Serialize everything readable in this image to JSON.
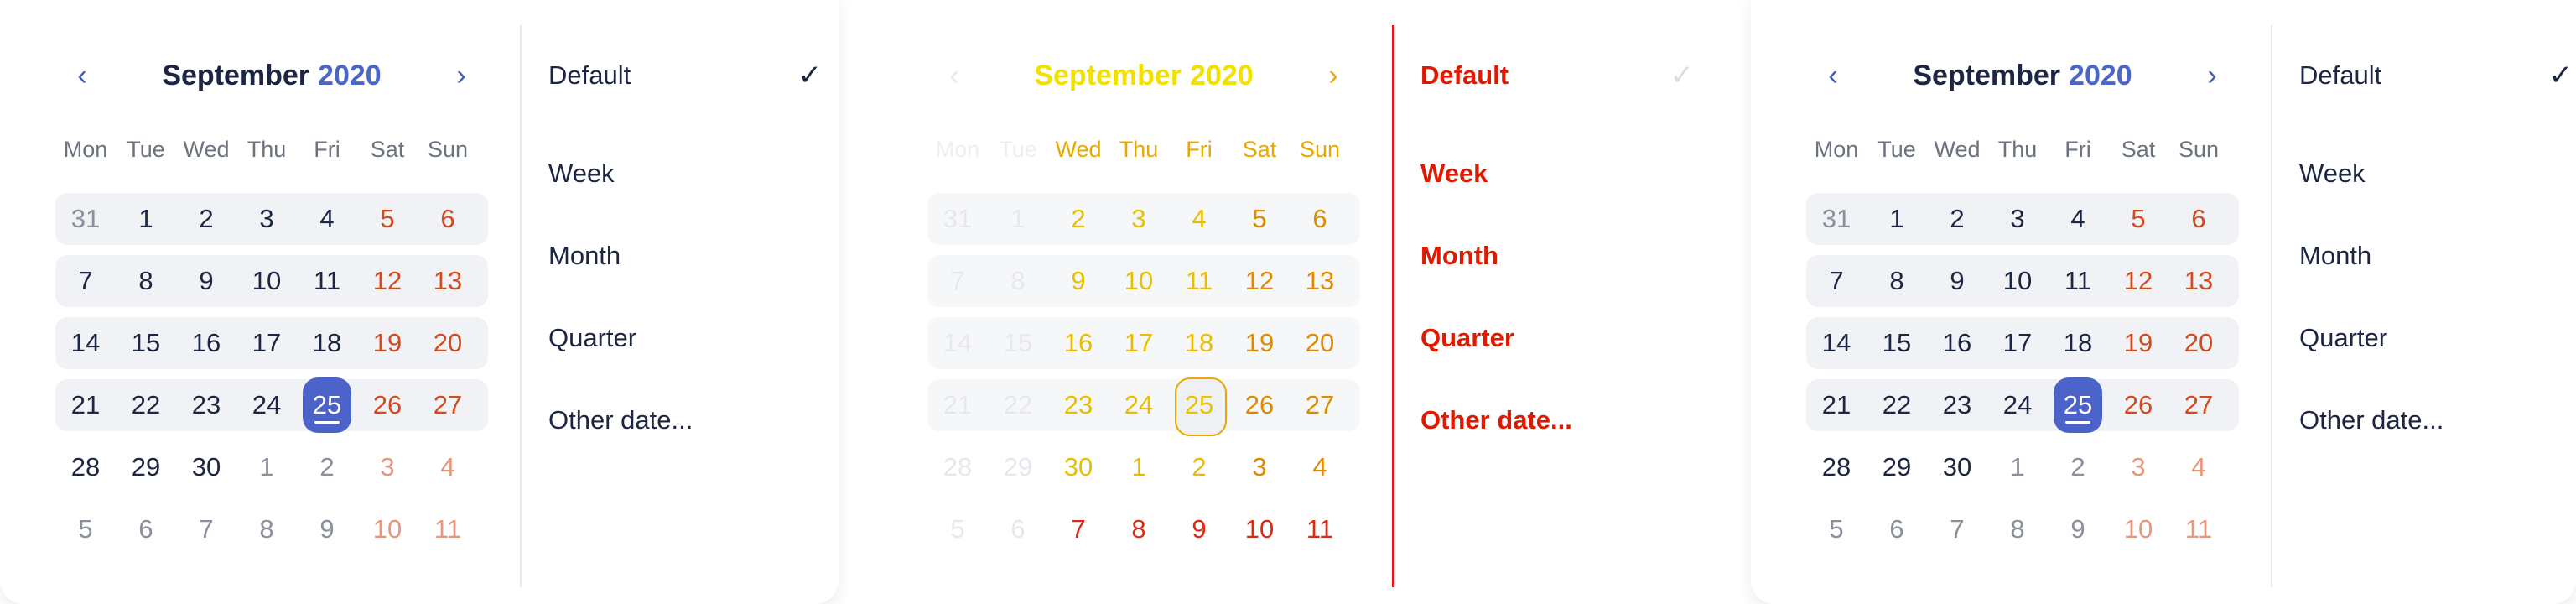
{
  "calendar": {
    "month": "September",
    "year": "2020",
    "prev_icon": "‹",
    "next_icon": "›",
    "weekdays": [
      "Mon",
      "Tue",
      "Wed",
      "Thu",
      "Fri",
      "Sat",
      "Sun"
    ],
    "weeks": [
      [
        "31",
        "1",
        "2",
        "3",
        "4",
        "5",
        "6"
      ],
      [
        "7",
        "8",
        "9",
        "10",
        "11",
        "12",
        "13"
      ],
      [
        "14",
        "15",
        "16",
        "17",
        "18",
        "19",
        "20"
      ],
      [
        "21",
        "22",
        "23",
        "24",
        "25",
        "26",
        "27"
      ],
      [
        "28",
        "29",
        "30",
        "1",
        "2",
        "3",
        "4"
      ],
      [
        "5",
        "6",
        "7",
        "8",
        "9",
        "10",
        "11"
      ]
    ],
    "today": "25"
  },
  "menu": {
    "items": [
      "Default",
      "Week",
      "Month",
      "Quarter",
      "Other date..."
    ],
    "check_icon": "✓"
  },
  "colors": {
    "accent": "#4b63c9",
    "weekend": "#d24a20",
    "text": "#1c2541",
    "ghost_yellow": "#e8bf00",
    "ghost_red": "#e0131a"
  }
}
